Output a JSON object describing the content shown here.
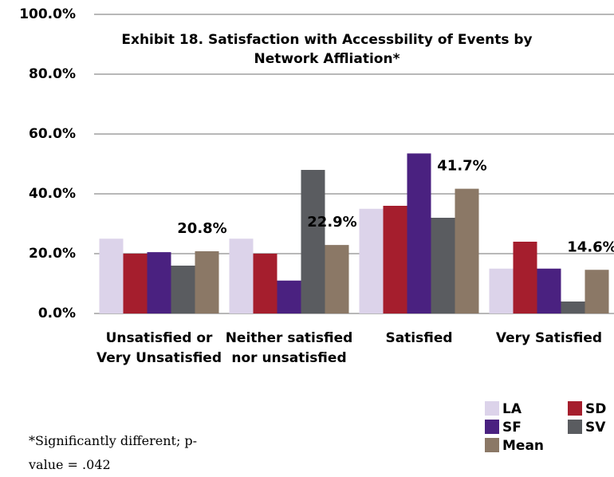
{
  "chart_data": {
    "type": "bar",
    "title": "Exhibit 18. Satisfaction with Accessbility of Events by Network Affliation*",
    "categories": [
      "Unsatisfied or Very Unsatisfied",
      "Neither satisfied nor unsatisfied",
      "Satisfied",
      "Very Satisfied"
    ],
    "series": [
      {
        "name": "LA",
        "color": "#dcd3ea",
        "values": [
          25,
          25,
          35,
          15
        ]
      },
      {
        "name": "SD",
        "color": "#a51e2d",
        "values": [
          20,
          20,
          36,
          24
        ]
      },
      {
        "name": "SF",
        "color": "#4a2180",
        "values": [
          20.5,
          11,
          53.5,
          15
        ]
      },
      {
        "name": "SV",
        "color": "#5a5c60",
        "values": [
          16,
          48,
          32,
          4
        ]
      },
      {
        "name": "Mean",
        "color": "#8b7866",
        "values": [
          20.8,
          22.9,
          41.7,
          14.6
        ],
        "value_labels": [
          "20.8%",
          "22.9%",
          "41.7%",
          "14.6%"
        ]
      }
    ],
    "ylim": [
      0,
      100
    ],
    "yticks": [
      {
        "value": 0,
        "label": "0.0%"
      },
      {
        "value": 20,
        "label": "20.0%"
      },
      {
        "value": 40,
        "label": "40.0%"
      },
      {
        "value": 60,
        "label": "60.0%"
      },
      {
        "value": 80,
        "label": "80.0%"
      },
      {
        "value": 100,
        "label": "100.0%"
      }
    ],
    "grid": true,
    "legend": "bottom-right",
    "footnote": "*Significantly different; p-value = .042"
  }
}
